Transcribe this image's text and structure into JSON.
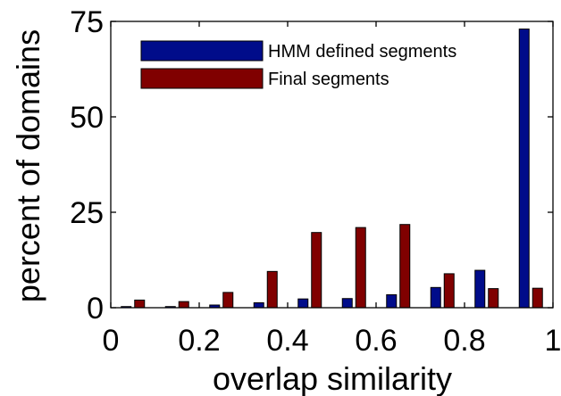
{
  "chart_data": {
    "type": "bar",
    "xlabel": "overlap similarity",
    "ylabel": "percent of domains",
    "xlim": [
      0,
      1
    ],
    "ylim": [
      0,
      75
    ],
    "x": [
      0.05,
      0.15,
      0.25,
      0.35,
      0.45,
      0.55,
      0.65,
      0.75,
      0.85,
      0.95
    ],
    "xticks": [
      0,
      0.2,
      0.4,
      0.6,
      0.8,
      1
    ],
    "xtick_labels": [
      "0",
      "0.2",
      "0.4",
      "0.6",
      "0.8",
      "1"
    ],
    "yticks": [
      0,
      25,
      50,
      75
    ],
    "ytick_labels": [
      "0",
      "25",
      "50",
      "75"
    ],
    "grid": false,
    "legend_position": "top-right",
    "series": [
      {
        "name": "HMM defined segments",
        "color": "#000c8a",
        "values": [
          0.3,
          0.3,
          0.7,
          1.3,
          2.3,
          2.4,
          3.4,
          5.3,
          9.8,
          73.0
        ]
      },
      {
        "name": "Final segments",
        "color": "#800000",
        "values": [
          2.0,
          1.6,
          4.0,
          9.5,
          19.7,
          21.0,
          21.8,
          8.9,
          5.0,
          5.1
        ]
      }
    ]
  }
}
